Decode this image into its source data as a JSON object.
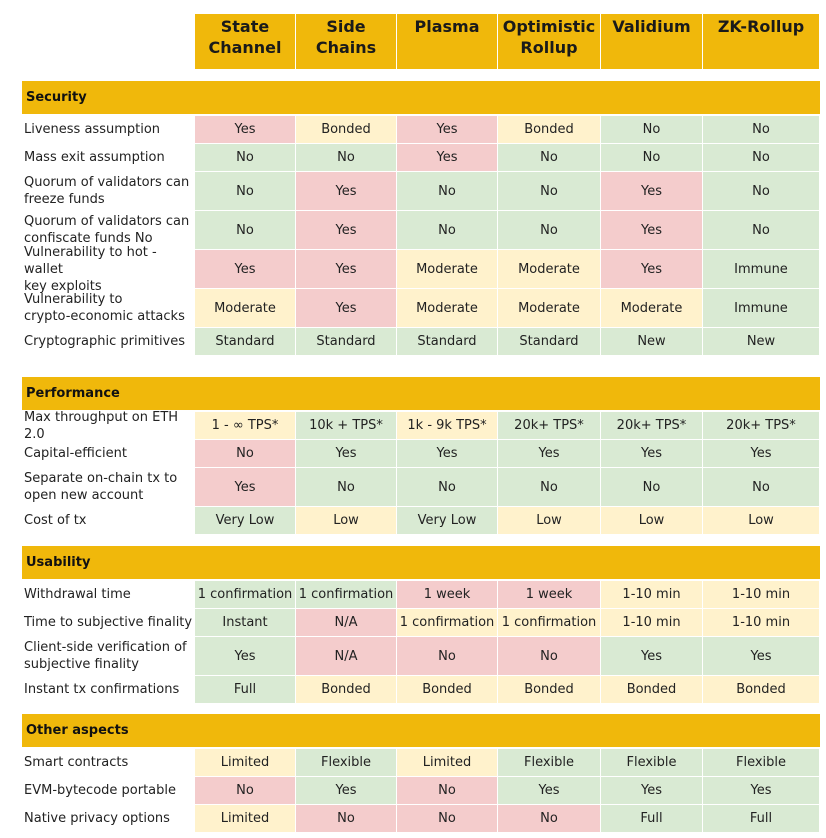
{
  "colors": {
    "header": "#f0b80b",
    "good": "#d9ead3",
    "bad": "#f4cccc",
    "medium": "#fff2cc",
    "divider": "#ffffff"
  },
  "columns": [
    "State\nChannel",
    "Side\nChains",
    "Plasma",
    "Optimistic\nRollup",
    "Validium",
    "ZK-Rollup"
  ],
  "sections": [
    {
      "title": "Security",
      "rows": [
        {
          "label": "Liveness assumption",
          "cells": [
            [
              "Yes",
              "bad"
            ],
            [
              "Bonded",
              "medium"
            ],
            [
              "Yes",
              "bad"
            ],
            [
              "Bonded",
              "medium"
            ],
            [
              "No",
              "good"
            ],
            [
              "No",
              "good"
            ]
          ]
        },
        {
          "label": "Mass exit assumption",
          "cells": [
            [
              "No",
              "good"
            ],
            [
              "No",
              "good"
            ],
            [
              "Yes",
              "bad"
            ],
            [
              "No",
              "good"
            ],
            [
              "No",
              "good"
            ],
            [
              "No",
              "good"
            ]
          ]
        },
        {
          "label": "Quorum of validators can\nfreeze funds",
          "cells": [
            [
              "No",
              "good"
            ],
            [
              "Yes",
              "bad"
            ],
            [
              "No",
              "good"
            ],
            [
              "No",
              "good"
            ],
            [
              "Yes",
              "bad"
            ],
            [
              "No",
              "good"
            ]
          ]
        },
        {
          "label": "Quorum of validators can\nconfiscate funds No",
          "cells": [
            [
              "No",
              "good"
            ],
            [
              "Yes",
              "bad"
            ],
            [
              "No",
              "good"
            ],
            [
              "No",
              "good"
            ],
            [
              "Yes",
              "bad"
            ],
            [
              "No",
              "good"
            ]
          ]
        },
        {
          "label": "Vulnerability to hot -wallet\nkey exploits",
          "cells": [
            [
              "Yes",
              "bad"
            ],
            [
              "Yes",
              "bad"
            ],
            [
              "Moderate",
              "medium"
            ],
            [
              "Moderate",
              "medium"
            ],
            [
              "Yes",
              "bad"
            ],
            [
              "Immune",
              "good"
            ]
          ]
        },
        {
          "label": "Vulnerability to\ncrypto-economic attacks",
          "cells": [
            [
              "Moderate",
              "medium"
            ],
            [
              "Yes",
              "bad"
            ],
            [
              "Moderate",
              "medium"
            ],
            [
              "Moderate",
              "medium"
            ],
            [
              "Moderate",
              "medium"
            ],
            [
              "Immune",
              "good"
            ]
          ]
        },
        {
          "label": "Cryptographic primitives",
          "cells": [
            [
              "Standard",
              "good"
            ],
            [
              "Standard",
              "good"
            ],
            [
              "Standard",
              "good"
            ],
            [
              "Standard",
              "good"
            ],
            [
              "New",
              "good"
            ],
            [
              "New",
              "good"
            ]
          ]
        }
      ]
    },
    {
      "title": "Performance",
      "rows": [
        {
          "label": "Max throughput on ETH 2.0",
          "cells": [
            [
              "1 - ∞ TPS*",
              "medium"
            ],
            [
              "10k + TPS*",
              "good"
            ],
            [
              "1k - 9k TPS*",
              "medium"
            ],
            [
              "20k+ TPS*",
              "good"
            ],
            [
              "20k+ TPS*",
              "good"
            ],
            [
              "20k+ TPS*",
              "good"
            ]
          ]
        },
        {
          "label": "Capital-efficient",
          "cells": [
            [
              "No",
              "bad"
            ],
            [
              "Yes",
              "good"
            ],
            [
              "Yes",
              "good"
            ],
            [
              "Yes",
              "good"
            ],
            [
              "Yes",
              "good"
            ],
            [
              "Yes",
              "good"
            ]
          ]
        },
        {
          "label": "Separate on-chain tx to\nopen new account",
          "cells": [
            [
              "Yes",
              "bad"
            ],
            [
              "No",
              "good"
            ],
            [
              "No",
              "good"
            ],
            [
              "No",
              "good"
            ],
            [
              "No",
              "good"
            ],
            [
              "No",
              "good"
            ]
          ]
        },
        {
          "label": "Cost of tx",
          "cells": [
            [
              "Very Low",
              "good"
            ],
            [
              "Low",
              "medium"
            ],
            [
              "Very Low",
              "good"
            ],
            [
              "Low",
              "medium"
            ],
            [
              "Low",
              "medium"
            ],
            [
              "Low",
              "medium"
            ]
          ]
        }
      ]
    },
    {
      "title": "Usability",
      "rows": [
        {
          "label": "Withdrawal time",
          "cells": [
            [
              "1 confirmation",
              "good"
            ],
            [
              "1 confirmation",
              "good"
            ],
            [
              "1 week",
              "bad"
            ],
            [
              "1 week",
              "bad"
            ],
            [
              "1-10 min",
              "medium"
            ],
            [
              "1-10 min",
              "medium"
            ]
          ]
        },
        {
          "label": "Time to subjective finality",
          "cells": [
            [
              "Instant",
              "good"
            ],
            [
              "N/A",
              "bad"
            ],
            [
              "1 confirmation",
              "medium"
            ],
            [
              "1 confirmation",
              "medium"
            ],
            [
              "1-10 min",
              "medium"
            ],
            [
              "1-10 min",
              "medium"
            ]
          ]
        },
        {
          "label": "Client-side verification of\nsubjective finality",
          "cells": [
            [
              "Yes",
              "good"
            ],
            [
              "N/A",
              "bad"
            ],
            [
              "No",
              "bad"
            ],
            [
              "No",
              "bad"
            ],
            [
              "Yes",
              "good"
            ],
            [
              "Yes",
              "good"
            ]
          ]
        },
        {
          "label": "Instant tx confirmations",
          "cells": [
            [
              "Full",
              "good"
            ],
            [
              "Bonded",
              "medium"
            ],
            [
              "Bonded",
              "medium"
            ],
            [
              "Bonded",
              "medium"
            ],
            [
              "Bonded",
              "medium"
            ],
            [
              "Bonded",
              "medium"
            ]
          ]
        }
      ]
    },
    {
      "title": "Other aspects",
      "rows": [
        {
          "label": "Smart contracts",
          "cells": [
            [
              "Limited",
              "medium"
            ],
            [
              "Flexible",
              "good"
            ],
            [
              "Limited",
              "medium"
            ],
            [
              "Flexible",
              "good"
            ],
            [
              "Flexible",
              "good"
            ],
            [
              "Flexible",
              "good"
            ]
          ]
        },
        {
          "label": "EVM-bytecode portable",
          "cells": [
            [
              "No",
              "bad"
            ],
            [
              "Yes",
              "good"
            ],
            [
              "No",
              "bad"
            ],
            [
              "Yes",
              "good"
            ],
            [
              "Yes",
              "good"
            ],
            [
              "Yes",
              "good"
            ]
          ]
        },
        {
          "label": "Native privacy options",
          "cells": [
            [
              "Limited",
              "medium"
            ],
            [
              "No",
              "bad"
            ],
            [
              "No",
              "bad"
            ],
            [
              "No",
              "bad"
            ],
            [
              "Full",
              "good"
            ],
            [
              "Full",
              "good"
            ]
          ]
        }
      ]
    }
  ]
}
